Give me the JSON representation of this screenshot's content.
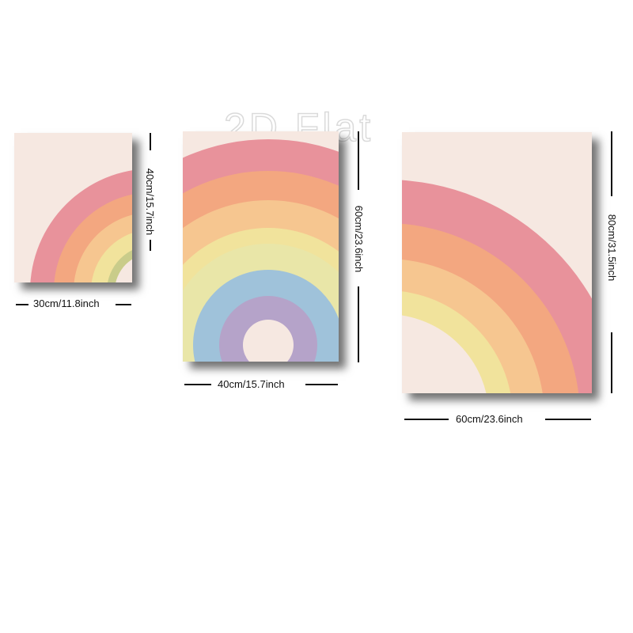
{
  "watermark": "2D Flat",
  "posters": [
    {
      "width_label": "30cm/11.8inch",
      "height_label": "40cm/15.7inch",
      "background": "#f6e8e1"
    },
    {
      "width_label": "40cm/15.7inch",
      "height_label": "60cm/23.6inch",
      "background": "#f6e8e1"
    },
    {
      "width_label": "60cm/23.6inch",
      "height_label": "80cm/31.5inch",
      "background": "#f6e8e1"
    }
  ],
  "rainbow_colors": {
    "pink": "#e8929b",
    "orange": "#f3a780",
    "peach": "#f6c690",
    "yellow": "#f1e39c",
    "green": "#c9cc8a",
    "blue": "#9fc2da",
    "purple": "#b5a3c9"
  }
}
